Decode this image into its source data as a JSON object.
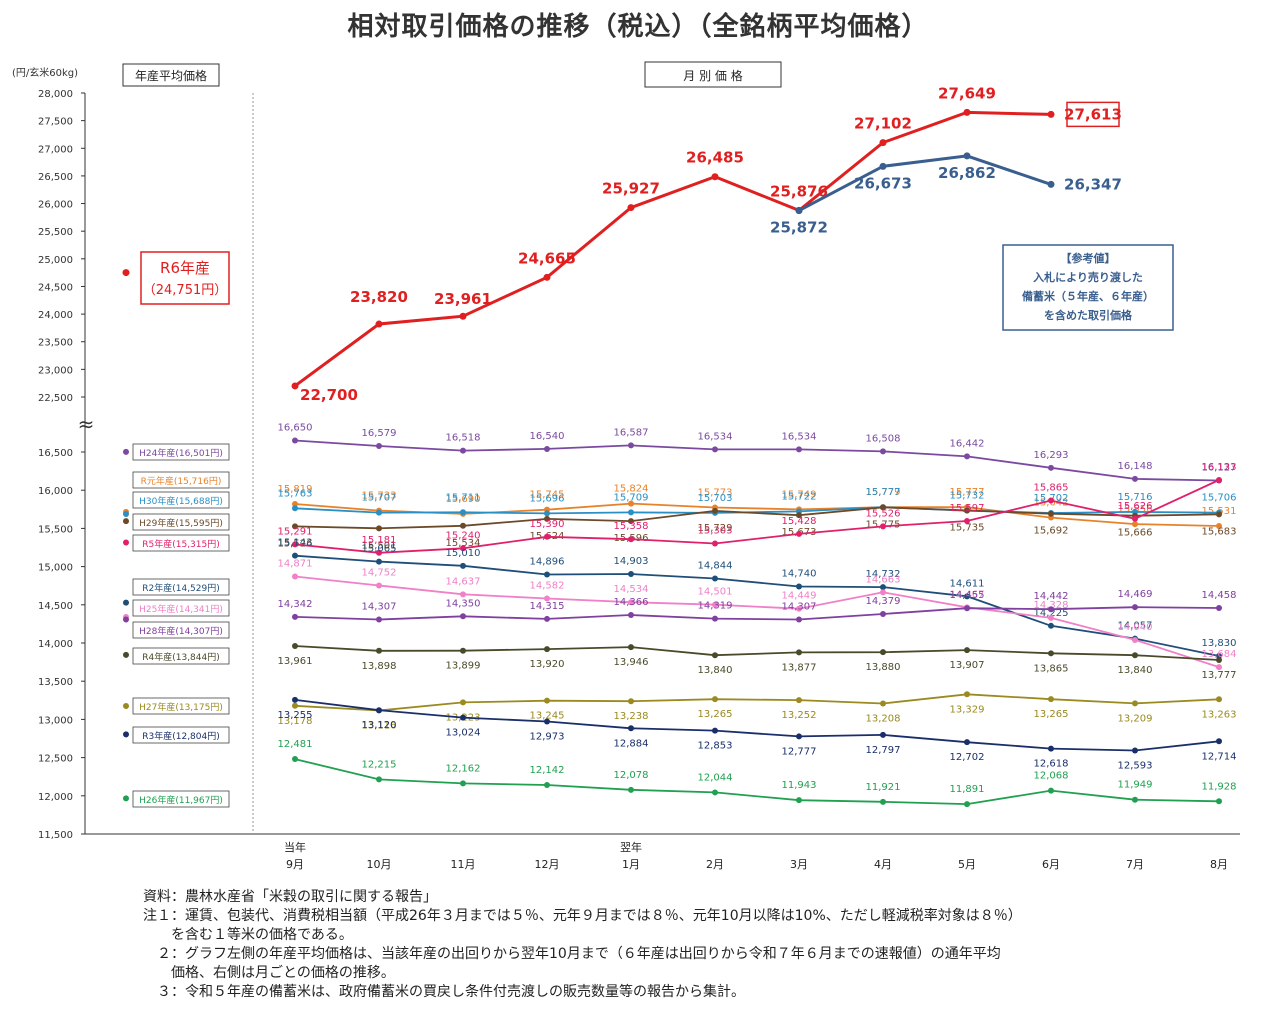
{
  "title": "相対取引価格の推移（税込）（全銘柄平均価格）",
  "notes": [
    "資料：農林水産省「米穀の取引に関する報告」",
    "注１：運賃、包装代、消費税相当額（平成26年３月までは５％、元年９月までは８％、元年10月以降は10%、ただし軽減税率対象は８％）",
    "　　を含む１等米の価格である。",
    "　２：グラフ左側の年産平均価格は、当該年産の出回りから翌年10月まで（６年産は出回りから令和７年６月までの速報値）の通年平均",
    "　　価格、右側は月ごとの価格の推移。",
    "　３：令和５年産の備蓄米は、政府備蓄米の買戻し条件付売渡しの販売数量等の報告から集計。"
  ],
  "chart_data": {
    "type": "line",
    "unit_label": "(円/玄米60kg)",
    "left_panel_label": "年産平均価格",
    "right_panel_label": "月 別 価 格",
    "axis_break_symbol": "≈",
    "x_prefix_labels": [
      "当年",
      "",
      "",
      "",
      "翌年",
      "",
      "",
      "",
      "",
      "",
      "",
      ""
    ],
    "categories": [
      "9月",
      "10月",
      "11月",
      "12月",
      "1月",
      "2月",
      "3月",
      "4月",
      "5月",
      "6月",
      "7月",
      "8月"
    ],
    "y_upper": {
      "ticks": [
        "28,000",
        "27,500",
        "27,000",
        "26,500",
        "26,000",
        "25,500",
        "25,000",
        "24,500",
        "24,000",
        "23,500",
        "23,000",
        "22,500"
      ],
      "ylim": [
        22500,
        28000
      ]
    },
    "y_lower": {
      "ticks": [
        "16,500",
        "16,000",
        "15,500",
        "15,000",
        "14,500",
        "14,000",
        "13,500",
        "13,000",
        "12,500",
        "12,000",
        "11,500"
      ],
      "ylim": [
        11500,
        16500
      ]
    },
    "series": [
      {
        "name": "R6年産",
        "avg_label": "R6年産",
        "avg_value_label": "（24,751円）",
        "avg": 24751,
        "color": "#e02020",
        "values": [
          22700,
          23820,
          23961,
          24665,
          25927,
          26485,
          25876,
          27102,
          27649,
          27613,
          null,
          null
        ],
        "labels": [
          "22,700",
          "23,820",
          "23,961",
          "24,665",
          "25,927",
          "26,485",
          "25,876",
          "27,102",
          "27,649",
          "27,613",
          "",
          ""
        ]
      },
      {
        "name": "参考値",
        "color": "#3a5f8f",
        "values": [
          null,
          null,
          null,
          null,
          null,
          null,
          25872,
          26673,
          26862,
          26347,
          null,
          null
        ],
        "labels": [
          "",
          "",
          "",
          "",
          "",
          "",
          "25,872",
          "26,673",
          "26,862",
          "26,347",
          "",
          ""
        ],
        "callout": [
          "【参考値】",
          "入札により売り渡した",
          "備蓄米（５年産、６年産）",
          "を含めた取引価格"
        ]
      },
      {
        "name": "H24年産",
        "legend": "H24年産(16,501円)",
        "avg": 16501,
        "color": "#7b4aa0",
        "values": [
          16650,
          16579,
          16518,
          16540,
          16587,
          16534,
          16534,
          16508,
          16442,
          16293,
          16148,
          16127
        ],
        "labels": [
          "16,650",
          "16,579",
          "16,518",
          "16,540",
          "16,587",
          "16,534",
          "16,534",
          "16,508",
          "16,442",
          "16,293",
          "16,148",
          "16,127"
        ]
      },
      {
        "name": "R元年産",
        "legend": "R元年産(15,716円)",
        "avg": 15716,
        "color": "#e8822a",
        "values": [
          15819,
          15733,
          15690,
          15745,
          15824,
          15773,
          15749,
          15779,
          15777,
          15642,
          15556,
          15531
        ],
        "labels": [
          "15,819",
          "15,733",
          "15,690",
          "15,745",
          "15,824",
          "15,773",
          "15,749",
          "15,779",
          "15,777",
          "15,642",
          "15,556",
          "15,531"
        ]
      },
      {
        "name": "H30年産",
        "legend": "H30年産(15,688円)",
        "avg": 15688,
        "color": "#2a8fc4",
        "values": [
          15763,
          15707,
          15711,
          15696,
          15709,
          15703,
          15722,
          15777,
          15732,
          15702,
          15716,
          15706
        ],
        "labels": [
          "15,763",
          "15,707",
          "15,711",
          "15,696",
          "15,709",
          "15,703",
          "15,722",
          "15,777",
          "15,732",
          "15,702",
          "15,716",
          "15,706"
        ]
      },
      {
        "name": "H29年産",
        "legend": "H29年産(15,595円)",
        "avg": 15595,
        "color": "#6b4a2a",
        "values": [
          15526,
          15501,
          15534,
          15624,
          15596,
          15729,
          15673,
          15775,
          15735,
          15692,
          15666,
          15683
        ],
        "labels": [
          "15,526",
          "15,501",
          "15,534",
          "15,624",
          "15,596",
          "15,729",
          "15,673",
          "15,775",
          "15,735",
          "15,692",
          "15,666",
          "15,683"
        ]
      },
      {
        "name": "R5年産",
        "legend": "R5年産(15,315円)",
        "avg": 15315,
        "color": "#e0206a",
        "values": [
          15291,
          15181,
          15240,
          15390,
          15358,
          15303,
          15428,
          15526,
          15597,
          15865,
          15626,
          16133
        ],
        "labels": [
          "15,291",
          "15,181",
          "15,240",
          "15,390",
          "15,358",
          "15,303",
          "15,428",
          "15,526",
          "15,597",
          "15,865",
          "15,626",
          "16,133"
        ]
      },
      {
        "name": "R2年産",
        "legend": "R2年産(14,529円)",
        "avg": 14529,
        "color": "#1f4e79",
        "values": [
          15143,
          15065,
          15010,
          14896,
          14903,
          14844,
          14740,
          14732,
          14611,
          14225,
          14057,
          13830
        ],
        "labels": [
          "15,143",
          "15,065",
          "15,010",
          "14,896",
          "14,903",
          "14,844",
          "14,740",
          "14,732",
          "14,611",
          "14,225",
          "14,057",
          "13,830"
        ]
      },
      {
        "name": "H25年産",
        "legend": "H25年産(14,341円)",
        "avg": 14341,
        "color": "#f080c8",
        "values": [
          14871,
          14752,
          14637,
          14582,
          14534,
          14501,
          14449,
          14663,
          14467,
          14328,
          14040,
          13684
        ],
        "labels": [
          "14,871",
          "14,752",
          "14,637",
          "14,582",
          "14,534",
          "14,501",
          "14,449",
          "14,663",
          "14,467",
          "14,328",
          "14,040",
          "13,684"
        ]
      },
      {
        "name": "H28年産",
        "legend": "H28年産(14,307円)",
        "avg": 14307,
        "color": "#8040a0",
        "values": [
          14342,
          14307,
          14350,
          14315,
          14366,
          14319,
          14307,
          14379,
          14455,
          14442,
          14469,
          14458
        ],
        "labels": [
          "14,342",
          "14,307",
          "14,350",
          "14,315",
          "14,366",
          "14,319",
          "14,307",
          "14,379",
          "14,455",
          "14,442",
          "14,469",
          "14,458"
        ]
      },
      {
        "name": "R4年産",
        "legend": "R4年産(13,844円)",
        "avg": 13844,
        "color": "#4a4a2a",
        "values": [
          13961,
          13898,
          13899,
          13920,
          13946,
          13840,
          13877,
          13880,
          13907,
          13865,
          13840,
          13777
        ],
        "labels": [
          "13,961",
          "13,898",
          "13,899",
          "13,920",
          "13,946",
          "13,840",
          "13,877",
          "13,880",
          "13,907",
          "13,865",
          "13,840",
          "13,777"
        ]
      },
      {
        "name": "H27年産",
        "legend": "H27年産(13,175円)",
        "avg": 13175,
        "color": "#9a8a20",
        "values": [
          13178,
          13116,
          13223,
          13245,
          13238,
          13265,
          13252,
          13208,
          13329,
          13265,
          13209,
          13263
        ],
        "labels": [
          "13,178",
          "13,116",
          "13,223",
          "13,245",
          "13,238",
          "13,265",
          "13,252",
          "13,208",
          "13,329",
          "13,265",
          "13,209",
          "13,263"
        ]
      },
      {
        "name": "R3年産",
        "legend": "R3年産(12,804円)",
        "avg": 12804,
        "color": "#1a2f6a",
        "values": [
          13255,
          13120,
          13024,
          12973,
          12884,
          12853,
          12777,
          12797,
          12702,
          12618,
          12593,
          12714
        ],
        "labels": [
          "13,255",
          "13,120",
          "13,024",
          "12,973",
          "12,884",
          "12,853",
          "12,777",
          "12,797",
          "12,702",
          "12,618",
          "12,593",
          "12,714"
        ]
      },
      {
        "name": "H26年産",
        "legend": "H26年産(11,967円)",
        "avg": 11967,
        "color": "#20a050",
        "values": [
          12481,
          12215,
          12162,
          12142,
          12078,
          12044,
          11943,
          11921,
          11891,
          12068,
          11949,
          11928
        ],
        "labels": [
          "12,481",
          "12,215",
          "12,162",
          "12,142",
          "12,078",
          "12,044",
          "11,943",
          "11,921",
          "11,891",
          "12,068",
          "11,949",
          "11,928"
        ]
      }
    ]
  }
}
